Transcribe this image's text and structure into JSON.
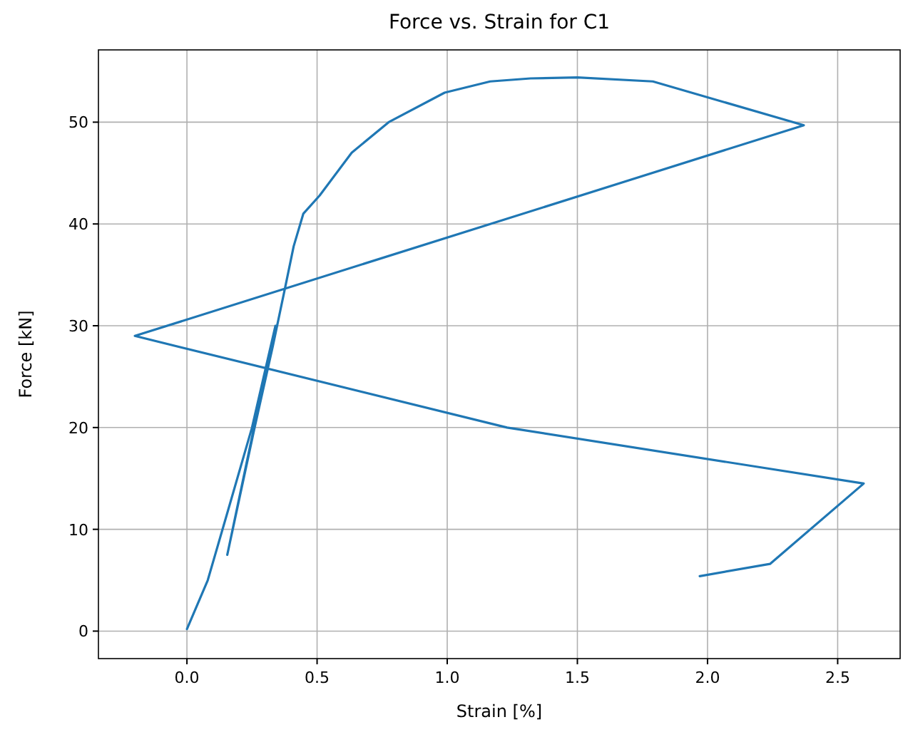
{
  "chart_data": {
    "type": "line",
    "title": "Force vs. Strain for C1",
    "xlabel": "Strain [%]",
    "ylabel": "Force [kN]",
    "xlim": [
      -0.34,
      2.74
    ],
    "ylim": [
      -2.7,
      57.1
    ],
    "xticks": [
      {
        "value": 0,
        "label": "0.0"
      },
      {
        "value": 0.5,
        "label": "0.5"
      },
      {
        "value": 1,
        "label": "1.0"
      },
      {
        "value": 1.5,
        "label": "1.5"
      },
      {
        "value": 2,
        "label": "2.0"
      },
      {
        "value": 2.5,
        "label": "2.5"
      }
    ],
    "yticks": [
      0,
      10,
      20,
      30,
      40,
      50
    ],
    "grid": true,
    "series": [
      {
        "color": "#1f77b4",
        "x": [
          0,
          0.08,
          0.155,
          0.25,
          0.34,
          0.155,
          0.26,
          0.33,
          0.376,
          0.41,
          0.447,
          0.51,
          0.633,
          0.775,
          0.99,
          1.165,
          1.32,
          1.5,
          1.79,
          2.37,
          -0.2,
          1.23,
          2.6,
          2.24,
          1.97
        ],
        "values": [
          0.2,
          5,
          11.6,
          20,
          30,
          7.5,
          20,
          28,
          33.6,
          37.8,
          41,
          42.8,
          47,
          50,
          52.9,
          54,
          54.3,
          54.4,
          54,
          49.7,
          29,
          20,
          14.5,
          6.6,
          5.4
        ]
      }
    ]
  }
}
